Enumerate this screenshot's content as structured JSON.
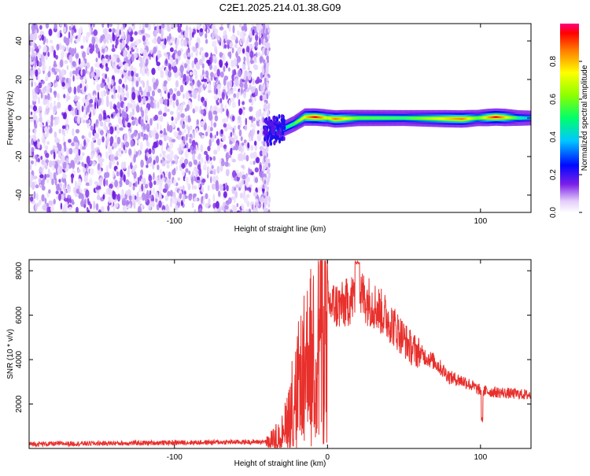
{
  "title": "C2E1.2025.214.01.38.G09",
  "chart_data": [
    {
      "type": "heatmap",
      "xlabel": "Height of straight line (km)",
      "ylabel": "Frequency (Hz)",
      "xlim": [
        -195,
        133
      ],
      "ylim": [
        -49,
        49
      ],
      "xticks": [
        -100,
        100
      ],
      "yticks": [
        -40,
        -20,
        0,
        20,
        40
      ],
      "colorbar": {
        "label": "Normalized spectral amplitude",
        "range": [
          0.0,
          1.0
        ],
        "ticks": [
          0.0,
          0.2,
          0.4,
          0.6,
          0.8
        ],
        "placement": "right"
      },
      "noise_region": {
        "x": [
          -195,
          -40
        ],
        "y": [
          -49,
          49
        ]
      },
      "ridge": [
        {
          "x": -38,
          "y": -7,
          "amp": 0.25
        },
        {
          "x": -30,
          "y": -6,
          "amp": 0.45
        },
        {
          "x": -22,
          "y": -3,
          "amp": 0.55
        },
        {
          "x": -15,
          "y": 0.5,
          "amp": 0.75
        },
        {
          "x": -8,
          "y": 0.5,
          "amp": 0.95
        },
        {
          "x": 0,
          "y": 0,
          "amp": 0.7
        },
        {
          "x": 5,
          "y": -0.5,
          "amp": 0.85
        },
        {
          "x": 20,
          "y": 0,
          "amp": 0.6
        },
        {
          "x": 50,
          "y": 0,
          "amp": 0.55
        },
        {
          "x": 88,
          "y": -0.5,
          "amp": 0.85
        },
        {
          "x": 98,
          "y": 0,
          "amp": 0.6
        },
        {
          "x": 110,
          "y": 0.5,
          "amp": 0.95
        },
        {
          "x": 125,
          "y": 0,
          "amp": 0.5
        },
        {
          "x": 133,
          "y": 0,
          "amp": 0.4
        }
      ]
    },
    {
      "type": "line",
      "xlabel": "Height of straight line (km)",
      "ylabel": "SNR (10 * v/v)",
      "xlim": [
        -195,
        133
      ],
      "ylim": [
        0,
        8500
      ],
      "xticks": [
        -100,
        0,
        100
      ],
      "yticks": [
        2000,
        4000,
        6000,
        8000
      ],
      "color": "#e8302c",
      "grid": false,
      "envelope": [
        {
          "x": -195,
          "y": 200
        },
        {
          "x": -40,
          "y": 300
        },
        {
          "x": -30,
          "y": 800
        },
        {
          "x": -20,
          "y": 3000
        },
        {
          "x": -12,
          "y": 4500
        },
        {
          "x": -5,
          "y": 5800
        },
        {
          "x": 0,
          "y": 6500
        },
        {
          "x": 10,
          "y": 6400
        },
        {
          "x": 20,
          "y": 7000
        },
        {
          "x": 30,
          "y": 6500
        },
        {
          "x": 40,
          "y": 5800
        },
        {
          "x": 55,
          "y": 4500
        },
        {
          "x": 70,
          "y": 3900
        },
        {
          "x": 80,
          "y": 3200
        },
        {
          "x": 90,
          "y": 3000
        },
        {
          "x": 100,
          "y": 2600
        },
        {
          "x": 115,
          "y": 2500
        },
        {
          "x": 133,
          "y": 2400
        }
      ]
    }
  ]
}
